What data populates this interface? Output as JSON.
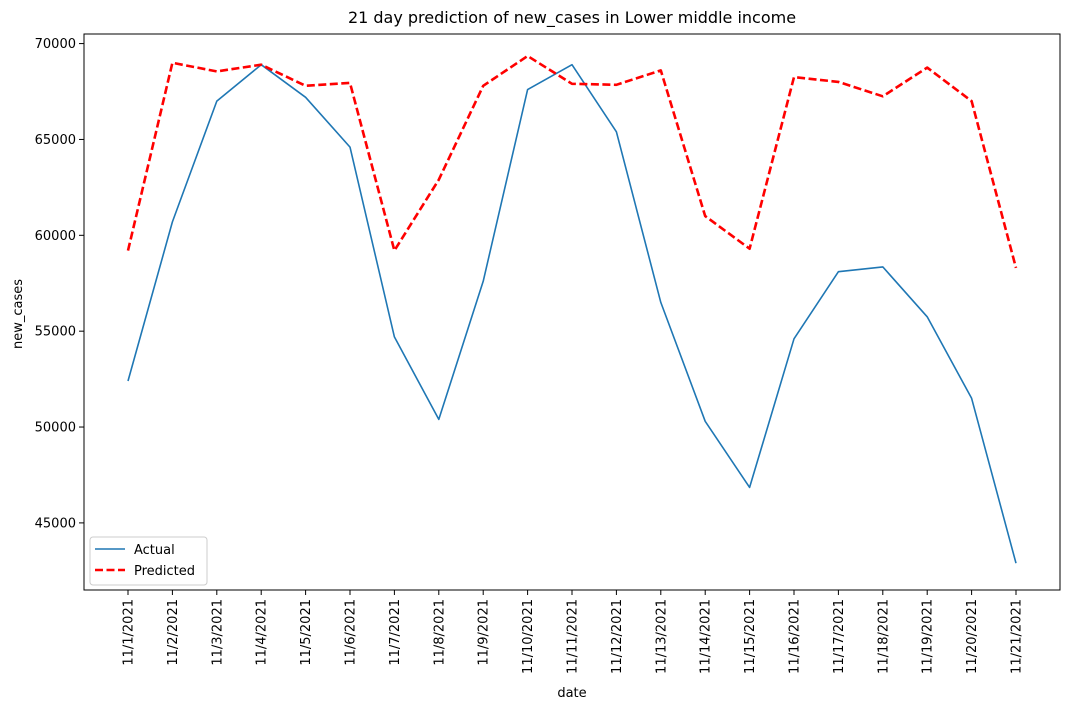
{
  "chart_data": {
    "type": "line",
    "title": "21 day prediction of new_cases in Lower middle income",
    "xlabel": "date",
    "ylabel": "new_cases",
    "categories": [
      "11/1/2021",
      "11/2/2021",
      "11/3/2021",
      "11/4/2021",
      "11/5/2021",
      "11/6/2021",
      "11/7/2021",
      "11/8/2021",
      "11/9/2021",
      "11/10/2021",
      "11/11/2021",
      "11/12/2021",
      "11/13/2021",
      "11/14/2021",
      "11/15/2021",
      "11/16/2021",
      "11/17/2021",
      "11/18/2021",
      "11/19/2021",
      "11/20/2021",
      "11/21/2021"
    ],
    "yticks": [
      45000,
      50000,
      55000,
      60000,
      65000,
      70000
    ],
    "ylim": [
      41500,
      70500
    ],
    "grid": false,
    "legend_position": "lower-left",
    "series": [
      {
        "name": "Actual",
        "color": "#1f77b4",
        "style": "solid",
        "values": [
          52400,
          60700,
          67000,
          68900,
          67200,
          64600,
          54700,
          50400,
          57600,
          67600,
          68900,
          65400,
          56500,
          50300,
          46850,
          54600,
          58100,
          58350,
          55750,
          51500,
          42900
        ]
      },
      {
        "name": "Predicted",
        "color": "#ff0000",
        "style": "dashed",
        "values": [
          59200,
          69000,
          68550,
          68900,
          67800,
          67950,
          59200,
          62900,
          67800,
          69350,
          67900,
          67850,
          68600,
          61000,
          59300,
          68250,
          68000,
          67250,
          68750,
          67000,
          58300
        ]
      }
    ]
  }
}
